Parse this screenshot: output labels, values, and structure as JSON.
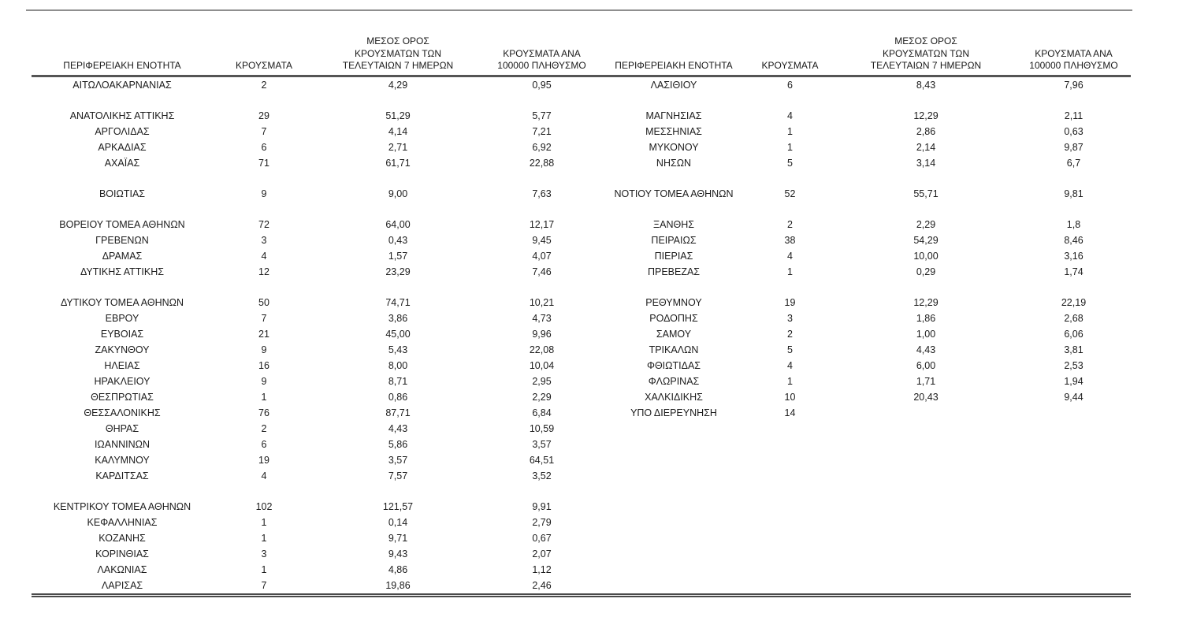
{
  "table": {
    "headers": {
      "region": "ΠΕΡΙΦΕΡΕΙΑΚΗ ΕΝΟΤΗΤΑ",
      "cases": "ΚΡΟΥΣΜΑΤΑ",
      "avg7": "ΜΕΣΟΣ ΟΡΟΣ\nΚΡΟΥΣΜΑΤΩΝ ΤΩΝ\nΤΕΛΕΥΤΑΙΩΝ 7 ΗΜΕΡΩΝ",
      "per100k": "ΚΡΟΥΣΜΑΤΑ ΑΝΑ\n100000 ΠΛΗΘΥΣΜΟ"
    },
    "rows": [
      {
        "left": [
          "ΑΙΤΩΛΟΑΚΑΡΝΑΝΙΑΣ",
          "2",
          "4,29",
          "0,95"
        ],
        "right": [
          "ΛΑΣΙΘΙΟΥ",
          "6",
          "8,43",
          "7,96"
        ]
      },
      {
        "spacer": true
      },
      {
        "left": [
          "ΑΝΑΤΟΛΙΚΗΣ ΑΤΤΙΚΗΣ",
          "29",
          "51,29",
          "5,77"
        ],
        "right": [
          "ΜΑΓΝΗΣΙΑΣ",
          "4",
          "12,29",
          "2,11"
        ]
      },
      {
        "left": [
          "ΑΡΓΟΛΙΔΑΣ",
          "7",
          "4,14",
          "7,21"
        ],
        "right": [
          "ΜΕΣΣΗΝΙΑΣ",
          "1",
          "2,86",
          "0,63"
        ]
      },
      {
        "left": [
          "ΑΡΚΑΔΙΑΣ",
          "6",
          "2,71",
          "6,92"
        ],
        "right": [
          "ΜΥΚΟΝΟΥ",
          "1",
          "2,14",
          "9,87"
        ]
      },
      {
        "left": [
          "ΑΧΑΪΑΣ",
          "71",
          "61,71",
          "22,88"
        ],
        "right": [
          "ΝΗΣΩΝ",
          "5",
          "3,14",
          "6,7"
        ]
      },
      {
        "spacer": true
      },
      {
        "left": [
          "ΒΟΙΩΤΙΑΣ",
          "9",
          "9,00",
          "7,63"
        ],
        "right": [
          "ΝΟΤΙΟΥ ΤΟΜΕΑ ΑΘΗΝΩΝ",
          "52",
          "55,71",
          "9,81"
        ]
      },
      {
        "spacer": true
      },
      {
        "left": [
          "ΒΟΡΕΙΟΥ ΤΟΜΕΑ ΑΘΗΝΩΝ",
          "72",
          "64,00",
          "12,17"
        ],
        "right": [
          "ΞΑΝΘΗΣ",
          "2",
          "2,29",
          "1,8"
        ]
      },
      {
        "left": [
          "ΓΡΕΒΕΝΩΝ",
          "3",
          "0,43",
          "9,45"
        ],
        "right": [
          "ΠΕΙΡΑΙΩΣ",
          "38",
          "54,29",
          "8,46"
        ]
      },
      {
        "left": [
          "ΔΡΑΜΑΣ",
          "4",
          "1,57",
          "4,07"
        ],
        "right": [
          "ΠΙΕΡΙΑΣ",
          "4",
          "10,00",
          "3,16"
        ]
      },
      {
        "left": [
          "ΔΥΤΙΚΗΣ ΑΤΤΙΚΗΣ",
          "12",
          "23,29",
          "7,46"
        ],
        "right": [
          "ΠΡΕΒΕΖΑΣ",
          "1",
          "0,29",
          "1,74"
        ]
      },
      {
        "spacer": true
      },
      {
        "left": [
          "ΔΥΤΙΚΟΥ ΤΟΜΕΑ ΑΘΗΝΩΝ",
          "50",
          "74,71",
          "10,21"
        ],
        "right": [
          "ΡΕΘΥΜΝΟΥ",
          "19",
          "12,29",
          "22,19"
        ]
      },
      {
        "left": [
          "ΕΒΡΟΥ",
          "7",
          "3,86",
          "4,73"
        ],
        "right": [
          "ΡΟΔΟΠΗΣ",
          "3",
          "1,86",
          "2,68"
        ]
      },
      {
        "left": [
          "ΕΥΒΟΙΑΣ",
          "21",
          "45,00",
          "9,96"
        ],
        "right": [
          "ΣΑΜΟΥ",
          "2",
          "1,00",
          "6,06"
        ]
      },
      {
        "left": [
          "ΖΑΚΥΝΘΟΥ",
          "9",
          "5,43",
          "22,08"
        ],
        "right": [
          "ΤΡΙΚΑΛΩΝ",
          "5",
          "4,43",
          "3,81"
        ]
      },
      {
        "left": [
          "ΗΛΕΙΑΣ",
          "16",
          "8,00",
          "10,04"
        ],
        "right": [
          "ΦΘΙΩΤΙΔΑΣ",
          "4",
          "6,00",
          "2,53"
        ]
      },
      {
        "left": [
          "ΗΡΑΚΛΕΙΟΥ",
          "9",
          "8,71",
          "2,95"
        ],
        "right": [
          "ΦΛΩΡΙΝΑΣ",
          "1",
          "1,71",
          "1,94"
        ]
      },
      {
        "left": [
          "ΘΕΣΠΡΩΤΙΑΣ",
          "1",
          "0,86",
          "2,29"
        ],
        "right": [
          "ΧΑΛΚΙΔΙΚΗΣ",
          "10",
          "20,43",
          "9,44"
        ]
      },
      {
        "left": [
          "ΘΕΣΣΑΛΟΝΙΚΗΣ",
          "76",
          "87,71",
          "6,84"
        ],
        "right": [
          "ΥΠΟ ΔΙΕΡΕΥΝΗΣΗ",
          "14",
          "",
          ""
        ]
      },
      {
        "left": [
          "ΘΗΡΑΣ",
          "2",
          "4,43",
          "10,59"
        ]
      },
      {
        "left": [
          "ΙΩΑΝΝΙΝΩΝ",
          "6",
          "5,86",
          "3,57"
        ]
      },
      {
        "left": [
          "ΚΑΛΥΜΝΟΥ",
          "19",
          "3,57",
          "64,51"
        ]
      },
      {
        "left": [
          "ΚΑΡΔΙΤΣΑΣ",
          "4",
          "7,57",
          "3,52"
        ]
      },
      {
        "spacer": true
      },
      {
        "left": [
          "ΚΕΝΤΡΙΚΟΥ ΤΟΜΕΑ ΑΘΗΝΩΝ",
          "102",
          "121,57",
          "9,91"
        ]
      },
      {
        "left": [
          "ΚΕΦΑΛΛΗΝΙΑΣ",
          "1",
          "0,14",
          "2,79"
        ]
      },
      {
        "left": [
          "ΚΟΖΑΝΗΣ",
          "1",
          "9,71",
          "0,67"
        ]
      },
      {
        "left": [
          "ΚΟΡΙΝΘΙΑΣ",
          "3",
          "9,43",
          "2,07"
        ]
      },
      {
        "left": [
          "ΛΑΚΩΝΙΑΣ",
          "1",
          "4,86",
          "1,12"
        ]
      },
      {
        "left": [
          "ΛΑΡΙΣΑΣ",
          "7",
          "19,86",
          "2,46"
        ]
      }
    ]
  }
}
